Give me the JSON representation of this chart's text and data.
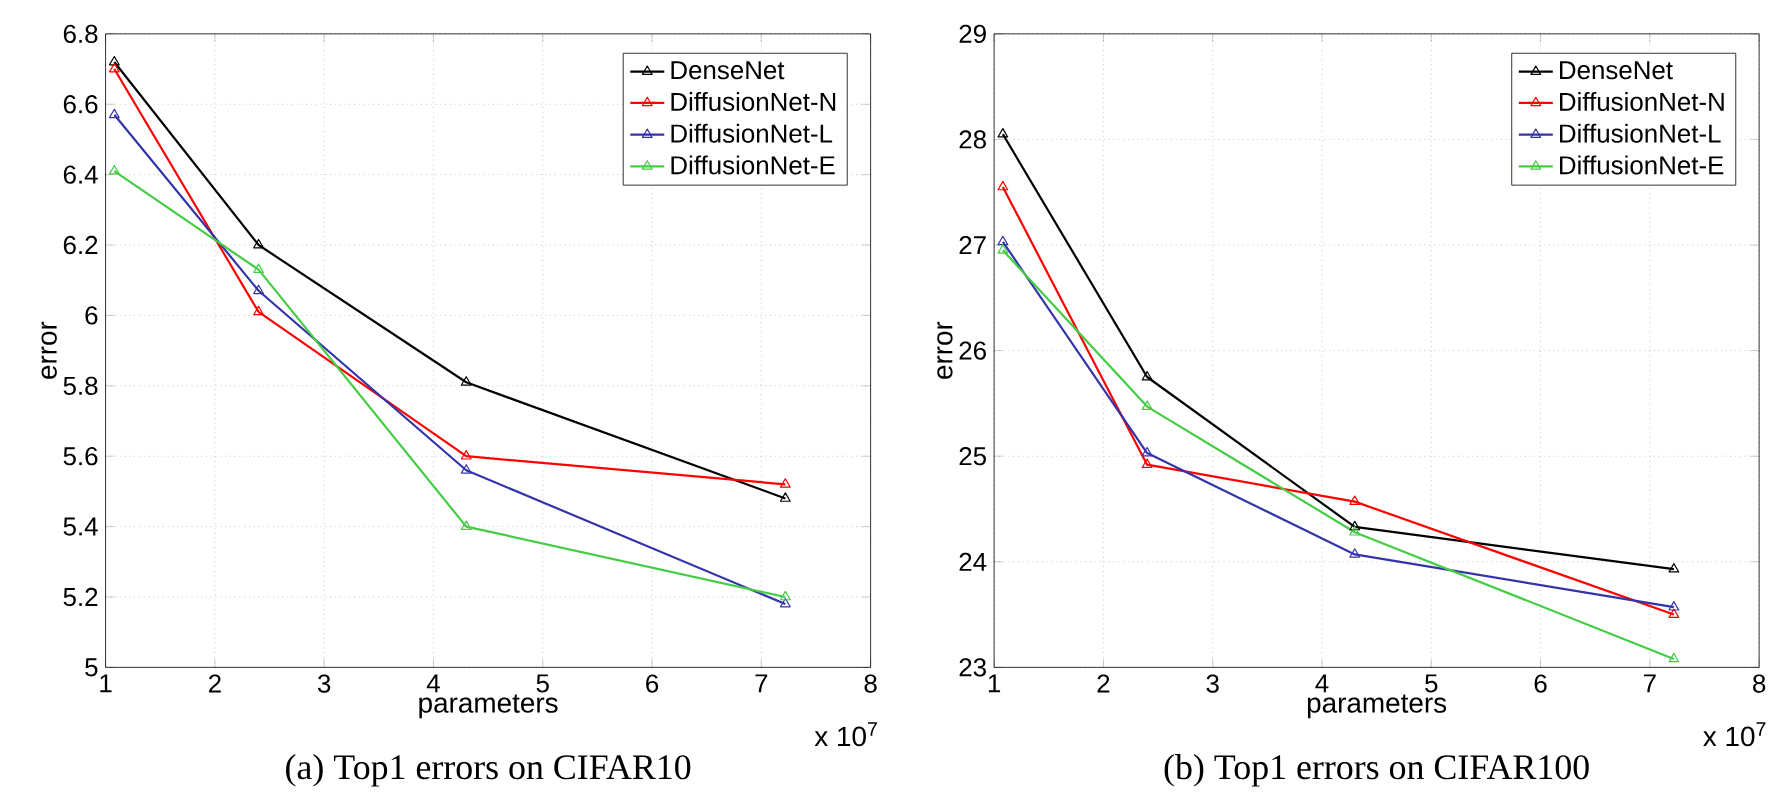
{
  "chart_data": [
    {
      "type": "line",
      "title": "(a) Top1 errors on CIFAR10",
      "xlabel": "parameters",
      "ylabel": "error",
      "annotations": [
        "x 10$^{7}$"
      ],
      "x": [
        1.08,
        2.4,
        4.3,
        7.22
      ],
      "series": [
        {
          "name": "DenseNet",
          "color": "#000000",
          "values": [
            6.72,
            6.2,
            5.81,
            5.48
          ]
        },
        {
          "name": "DiffusionNet-N",
          "color": "#ff0000",
          "values": [
            6.7,
            6.01,
            5.6,
            5.52
          ]
        },
        {
          "name": "DiffusionNet-L",
          "color": "#3333aa",
          "values": [
            6.57,
            6.07,
            5.56,
            5.18
          ]
        },
        {
          "name": "DiffusionNet-E",
          "color": "#44cc44",
          "values": [
            6.41,
            6.13,
            5.4,
            5.2
          ]
        }
      ],
      "xlim": [
        1,
        8
      ],
      "xticks": [
        1,
        2,
        3,
        4,
        5,
        6,
        7,
        8
      ],
      "ylim": [
        5,
        6.8
      ],
      "yticks": [
        5,
        5.2,
        5.4,
        5.6,
        5.8,
        6,
        6.2,
        6.4,
        6.6,
        6.8
      ],
      "grid": true,
      "legend": "top right",
      "marker": "triangle",
      "line_style": "solid"
    },
    {
      "type": "line",
      "title": "(b) Top1 errors on CIFAR100",
      "xlabel": "parameters",
      "ylabel": "error",
      "annotations": [
        "x 10$^{7}$"
      ],
      "x": [
        1.08,
        2.4,
        4.3,
        7.22
      ],
      "series": [
        {
          "name": "DenseNet",
          "color": "#000000",
          "values": [
            28.05,
            25.75,
            24.33,
            23.93
          ]
        },
        {
          "name": "DiffusionNet-N",
          "color": "#ff0000",
          "values": [
            27.55,
            24.92,
            24.57,
            23.5
          ]
        },
        {
          "name": "DiffusionNet-L",
          "color": "#3333aa",
          "values": [
            27.03,
            25.03,
            24.07,
            23.57
          ]
        },
        {
          "name": "DiffusionNet-E",
          "color": "#44cc44",
          "values": [
            26.95,
            25.47,
            24.28,
            23.08
          ]
        }
      ],
      "xlim": [
        1,
        8
      ],
      "xticks": [
        1,
        2,
        3,
        4,
        5,
        6,
        7,
        8
      ],
      "ylim": [
        23,
        29
      ],
      "yticks": [
        23,
        24,
        25,
        26,
        27,
        28,
        29
      ],
      "grid": true,
      "legend": "top right",
      "marker": "triangle",
      "line_style": "solid"
    }
  ]
}
